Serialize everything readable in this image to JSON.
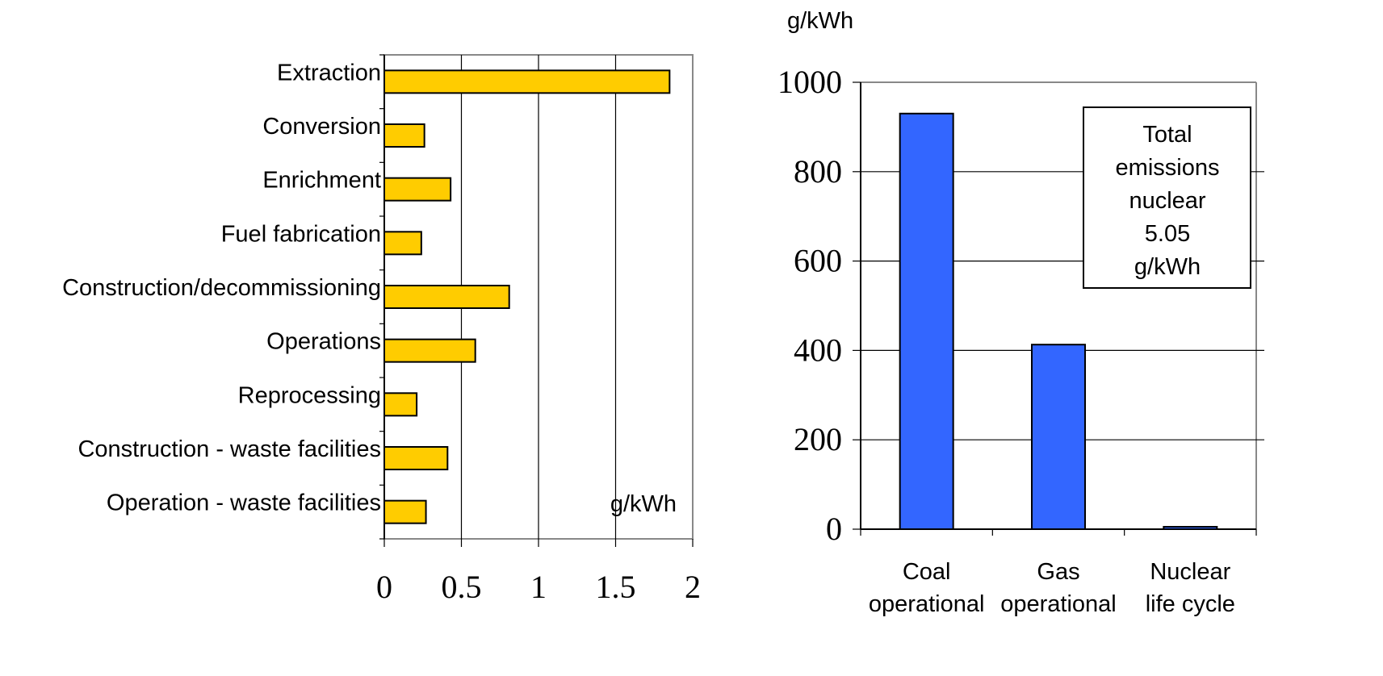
{
  "chart_data": [
    {
      "type": "bar",
      "orientation": "horizontal",
      "categories": [
        "Extraction",
        "Conversion",
        "Enrichment",
        "Fuel fabrication",
        "Construction/decommissioning",
        "Operations",
        "Reprocessing",
        "Construction - waste facilities",
        "Operation - waste facilities"
      ],
      "values": [
        1.85,
        0.26,
        0.43,
        0.24,
        0.81,
        0.59,
        0.21,
        0.41,
        0.27
      ],
      "unit_label": "g/kWh",
      "xlim": [
        0,
        2
      ],
      "ticks": [
        "0",
        "0.5",
        "1",
        "1.5",
        "2"
      ],
      "grid": "vertical",
      "bar_color": "#ffcc00"
    },
    {
      "type": "bar",
      "categories": [
        [
          "Coal",
          "operational"
        ],
        [
          "Gas",
          "operational"
        ],
        [
          "Nuclear",
          "life cycle"
        ]
      ],
      "values": [
        930,
        413,
        5.05
      ],
      "ylabel": "g/kWh",
      "ylim": [
        0,
        1000
      ],
      "ticks": [
        "0",
        "200",
        "400",
        "600",
        "800",
        "1000"
      ],
      "grid": "horizontal",
      "bar_color": "#3366ff",
      "annotation": [
        "Total",
        "emissions",
        "nuclear",
        "5.05",
        "g/kWh"
      ]
    }
  ]
}
